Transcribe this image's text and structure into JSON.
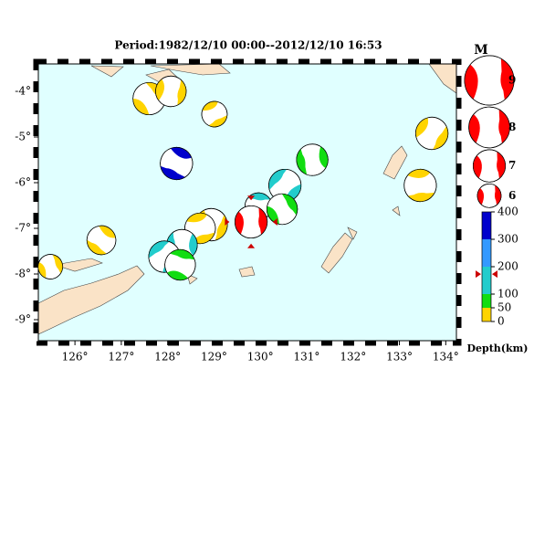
{
  "chart_data": {
    "type": "focal-mechanism-map",
    "title": "Period:1982/12/10 00:00--2012/12/10 16:53",
    "xlim": [
      125.21,
      134.23
    ],
    "ylim": [
      -9.46,
      -3.4
    ],
    "xticks": [
      {
        "value": 126,
        "label": "126°"
      },
      {
        "value": 127,
        "label": "127°"
      },
      {
        "value": 128,
        "label": "128°"
      },
      {
        "value": 129,
        "label": "129°"
      },
      {
        "value": 130,
        "label": "130°"
      },
      {
        "value": 131,
        "label": "131°"
      },
      {
        "value": 132,
        "label": "132°"
      },
      {
        "value": 133,
        "label": "133°"
      },
      {
        "value": 134,
        "label": "134°"
      }
    ],
    "yticks": [
      {
        "value": -4,
        "label": "-4°"
      },
      {
        "value": -5,
        "label": "-5°"
      },
      {
        "value": -6,
        "label": "-6°"
      },
      {
        "value": -7,
        "label": "-7°"
      },
      {
        "value": -8,
        "label": "-8°"
      },
      {
        "value": -9,
        "label": "-9°"
      }
    ],
    "events": {
      "lon": [
        127.6,
        128.07,
        129.01,
        128.19,
        131.12,
        130.53,
        129.96,
        130.47,
        128.94,
        128.7,
        126.57,
        128.31,
        127.93,
        128.27,
        125.47,
        133.7,
        133.45
      ],
      "lat": [
        -4.16,
        -4.0,
        -4.5,
        -5.58,
        -5.5,
        -6.06,
        -6.52,
        -6.58,
        -6.92,
        -7.0,
        -7.26,
        -7.36,
        -7.62,
        -7.8,
        -7.84,
        -4.92,
        -6.06
      ],
      "depth": [
        20,
        25,
        15,
        380,
        70,
        150,
        130,
        80,
        30,
        20,
        25,
        150,
        140,
        80,
        20,
        15,
        20
      ],
      "mag": [
        7,
        6.8,
        6.2,
        7,
        6.9,
        7,
        6.4,
        6.8,
        7,
        6.8,
        6.6,
        6.8,
        6.9,
        6.8,
        6.1,
        7,
        7
      ]
    },
    "selected": {
      "lon": 129.8,
      "lat": -6.86,
      "depth": 173,
      "mag": 7,
      "color": "#ff0000"
    },
    "mag_legend": {
      "title": "M",
      "values": [
        9,
        8,
        7,
        6
      ]
    },
    "depth_scale": {
      "label": "Depth(km)",
      "ylim": [
        0,
        400
      ],
      "ticks": [
        0,
        50,
        100,
        200,
        300,
        400
      ],
      "colors": [
        "#ffd400",
        "#11dd11",
        "#22cccc",
        "#3399ff",
        "#0000cc"
      ]
    }
  }
}
